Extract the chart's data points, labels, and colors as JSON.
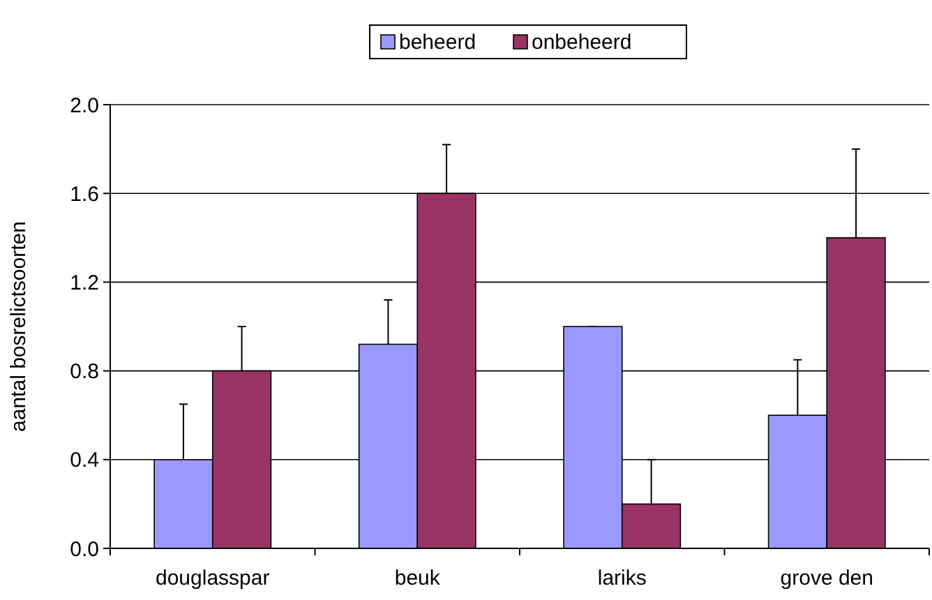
{
  "chart_data": {
    "type": "bar",
    "ylabel": "aantal bosrelictsoorten",
    "categories": [
      "douglasspar",
      "beuk",
      "lariks",
      "grove den"
    ],
    "series": [
      {
        "name": "beheerd",
        "color": "#9999ff",
        "values": [
          0.4,
          0.92,
          1.0,
          0.6
        ],
        "errors": [
          [
            0.4,
            0.65
          ],
          [
            0.92,
            1.12
          ],
          [
            1.0,
            1.0
          ],
          [
            0.6,
            0.85
          ]
        ]
      },
      {
        "name": "onbeheerd",
        "color": "#993366",
        "values": [
          0.8,
          1.6,
          0.2,
          1.4
        ],
        "errors": [
          [
            0.8,
            1.0
          ],
          [
            1.6,
            1.82
          ],
          [
            0.2,
            0.4
          ],
          [
            1.4,
            1.8
          ]
        ]
      }
    ],
    "ylim": [
      0,
      2
    ],
    "yticks": [
      {
        "value": 0,
        "label": "0.0"
      },
      {
        "value": 0.4,
        "label": "0.4"
      },
      {
        "value": 0.8,
        "label": "0.8"
      },
      {
        "value": 1.2,
        "label": "1.2"
      },
      {
        "value": 1.6,
        "label": "1.6"
      },
      {
        "value": 2,
        "label": "2.0"
      }
    ],
    "grid": "y",
    "legend": "top"
  }
}
